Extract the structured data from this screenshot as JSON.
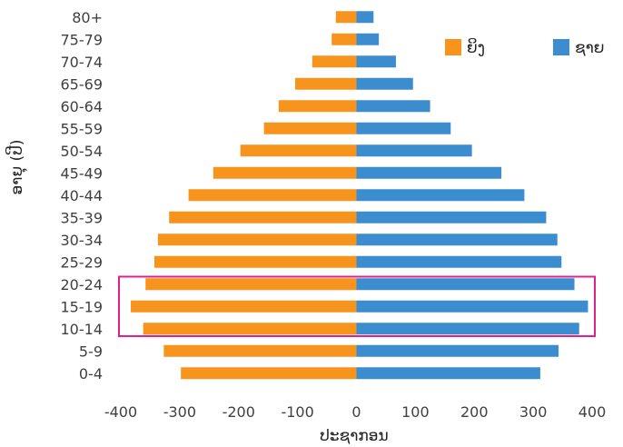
{
  "chart_data": {
    "type": "bar",
    "orientation": "horizontal",
    "layout": "population-pyramid",
    "categories": [
      "0-4",
      "5-9",
      "10-14",
      "15-19",
      "20-24",
      "25-29",
      "30-34",
      "35-39",
      "40-44",
      "45-49",
      "50-54",
      "55-59",
      "60-64",
      "65-69",
      "70-74",
      "75-79",
      "80+"
    ],
    "series": [
      {
        "name": "ຍິງ",
        "color": "#f7941d",
        "values": [
          -298,
          -327,
          -362,
          -383,
          -358,
          -343,
          -337,
          -318,
          -285,
          -243,
          -197,
          -157,
          -132,
          -104,
          -75,
          -42,
          -35
        ]
      },
      {
        "name": "ຊາຍ",
        "color": "#3c8dd0",
        "values": [
          312,
          343,
          378,
          393,
          370,
          348,
          341,
          322,
          285,
          246,
          196,
          160,
          125,
          96,
          67,
          38,
          29
        ]
      }
    ],
    "xlim": [
      -400,
      400
    ],
    "xticks": [
      -400,
      -300,
      -200,
      -100,
      0,
      100,
      200,
      300,
      400
    ],
    "xtick_labels": [
      "-400",
      "-300",
      "-200",
      "-100",
      "0",
      "100",
      "200",
      "300",
      "400"
    ],
    "xlabel": "ປະຊາກອນ",
    "ylabel": "ອາຍຸ (ປີ)",
    "legend_position": "top-right",
    "grid": false,
    "highlight": {
      "categories": [
        "10-14",
        "15-19",
        "20-24"
      ],
      "color": "#e0218a"
    }
  }
}
